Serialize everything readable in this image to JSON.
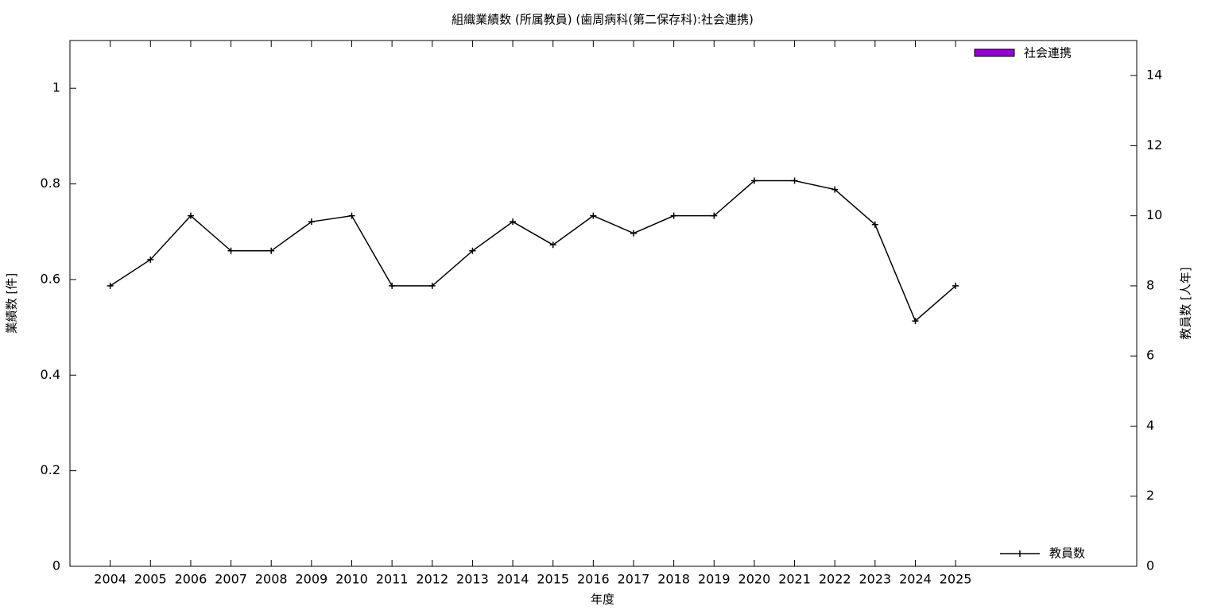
{
  "chart_data": {
    "type": "bar+line",
    "title": "組織業績数 (所属教員) (歯周病科(第二保存科):社会連携)",
    "xlabel": "年度",
    "ylabel": "業績数 [件]",
    "y2label": "教員数 [人年]",
    "x": [
      2004,
      2005,
      2006,
      2007,
      2008,
      2009,
      2010,
      2011,
      2012,
      2013,
      2014,
      2015,
      2016,
      2017,
      2018,
      2019,
      2020,
      2021,
      2022,
      2023,
      2024,
      2025
    ],
    "xlim": [
      2003,
      2029.5
    ],
    "ylim": [
      0,
      1.1
    ],
    "yticks": [
      0,
      0.2,
      0.4,
      0.6,
      0.8,
      1
    ],
    "y2lim": [
      0,
      15
    ],
    "y2ticks": [
      0,
      2,
      4,
      6,
      8,
      10,
      12,
      14
    ],
    "series": [
      {
        "name": "社会連携",
        "type": "bar",
        "color": "#9400d3",
        "values": [
          0,
          0,
          0,
          0,
          0,
          0,
          0,
          0,
          0,
          0,
          0,
          0,
          0,
          0,
          0,
          0,
          0,
          0,
          0,
          0,
          0,
          0
        ]
      },
      {
        "name": "教員数",
        "type": "line",
        "axis": "y2",
        "color": "#000000",
        "values": [
          8,
          8.75,
          10,
          9,
          9,
          9.83,
          10,
          8,
          8,
          9,
          9.83,
          9.17,
          10,
          9.5,
          10,
          10,
          11,
          11,
          10.75,
          9.75,
          7,
          8
        ]
      }
    ]
  }
}
